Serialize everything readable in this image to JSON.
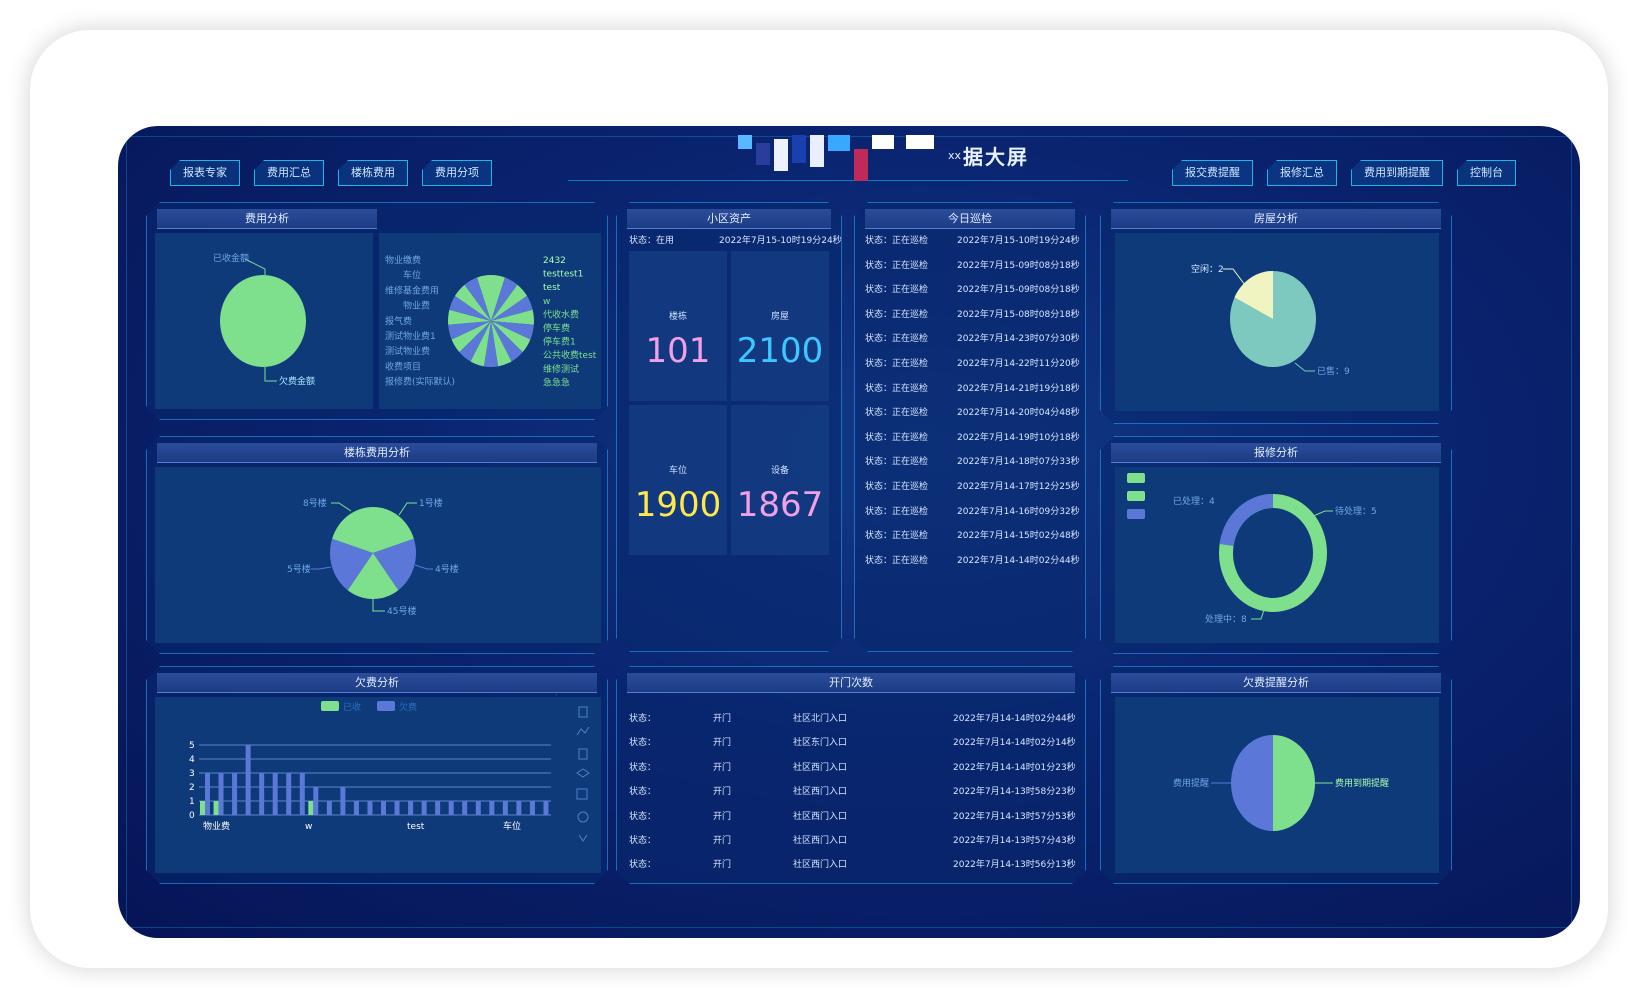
{
  "header": {
    "title": "xx数据大屏",
    "title_suffix": "据大屏",
    "title_prefix": "xx",
    "nav_left": [
      "报表专家",
      "费用汇总",
      "楼栋费用",
      "费用分项"
    ],
    "nav_right": [
      "报交费提醒",
      "报修汇总",
      "费用到期提醒",
      "控制台"
    ]
  },
  "panels": {
    "fee_analysis": {
      "title": "费用分析",
      "left_pie": {
        "labels": [
          "已收金额",
          "欠费金额"
        ]
      },
      "right_pie": {
        "labels_left": [
          "物业缴费",
          "车位",
          "维修基金费用",
          "物业费",
          "报气费",
          "测试物业费1",
          "测试物业费",
          "收费项目",
          "报修费(实际默认)"
        ],
        "labels_right": [
          "2432",
          "testtest1",
          "test",
          "w",
          "代收水费",
          "停车费",
          "停车费1",
          "公共收费test",
          "维修测试",
          "急急急"
        ]
      }
    },
    "building_fee": {
      "title": "楼栋费用分析",
      "labels": [
        "8号楼",
        "1号楼",
        "5号楼",
        "4号楼",
        "45号楼"
      ]
    },
    "arrears": {
      "title": "欠费分析",
      "legend": [
        "已收",
        "欠费"
      ],
      "yticks": [
        "5",
        "4",
        "3",
        "2",
        "1",
        "0"
      ],
      "xticks": [
        "物业费",
        "w",
        "test",
        "车位"
      ]
    },
    "community_assets": {
      "title": "小区资产",
      "status_label": "状态：在用",
      "timestamp": "2022年7月15-10时19分24秒",
      "tiles": [
        {
          "label": "楼栋",
          "value": "101",
          "color": "#f0a0e6"
        },
        {
          "label": "房屋",
          "value": "2100",
          "color": "#3cc8ff"
        },
        {
          "label": "车位",
          "value": "1900",
          "color": "#ffe84a"
        },
        {
          "label": "设备",
          "value": "1867",
          "color": "#f0a0e6"
        }
      ]
    },
    "inspection": {
      "title": "今日巡检",
      "rows": [
        {
          "status": "状态：正在巡检",
          "time": "2022年7月15-10时19分24秒"
        },
        {
          "status": "状态：正在巡检",
          "time": "2022年7月15-09时08分18秒"
        },
        {
          "status": "状态：正在巡检",
          "time": "2022年7月15-09时08分18秒"
        },
        {
          "status": "状态：正在巡检",
          "time": "2022年7月15-08时08分18秒"
        },
        {
          "status": "状态：正在巡检",
          "time": "2022年7月14-23时07分30秒"
        },
        {
          "status": "状态：正在巡检",
          "time": "2022年7月14-22时11分20秒"
        },
        {
          "status": "状态：正在巡检",
          "time": "2022年7月14-21时19分18秒"
        },
        {
          "status": "状态：正在巡检",
          "time": "2022年7月14-20时04分48秒"
        },
        {
          "status": "状态：正在巡检",
          "time": "2022年7月14-19时10分18秒"
        },
        {
          "status": "状态：正在巡检",
          "time": "2022年7月14-18时07分33秒"
        },
        {
          "status": "状态：正在巡检",
          "time": "2022年7月14-17时12分25秒"
        },
        {
          "status": "状态：正在巡检",
          "time": "2022年7月14-16时09分32秒"
        },
        {
          "status": "状态：正在巡检",
          "time": "2022年7月14-15时02分48秒"
        },
        {
          "status": "状态：正在巡检",
          "time": "2022年7月14-14时02分44秒"
        }
      ]
    },
    "door_open": {
      "title": "开门次数",
      "rows": [
        {
          "status": "状态：",
          "action": "开门",
          "place": "社区北门入口",
          "time": "2022年7月14-14时02分44秒"
        },
        {
          "status": "状态：",
          "action": "开门",
          "place": "社区东门入口",
          "time": "2022年7月14-14时02分14秒"
        },
        {
          "status": "状态：",
          "action": "开门",
          "place": "社区西门入口",
          "time": "2022年7月14-14时01分23秒"
        },
        {
          "status": "状态：",
          "action": "开门",
          "place": "社区西门入口",
          "time": "2022年7月14-13时58分23秒"
        },
        {
          "status": "状态：",
          "action": "开门",
          "place": "社区西门入口",
          "time": "2022年7月14-13时57分53秒"
        },
        {
          "status": "状态：",
          "action": "开门",
          "place": "社区西门入口",
          "time": "2022年7月14-13时57分43秒"
        },
        {
          "status": "状态：",
          "action": "开门",
          "place": "社区西门入口",
          "time": "2022年7月14-13时56分13秒"
        }
      ]
    },
    "housing": {
      "title": "房屋分析",
      "labels": [
        "空闲：2",
        "已售：9"
      ]
    },
    "repair": {
      "title": "报修分析",
      "labels": [
        "已处理：4",
        "待处理：5",
        "处理中：8"
      ]
    },
    "arrears_reminder": {
      "title": "欠费提醒分析",
      "labels": [
        "费用提醒",
        "费用到期提醒"
      ]
    }
  },
  "chart_data": [
    {
      "type": "pie",
      "title": "费用分析",
      "categories": [
        "已收金额",
        "欠费金额"
      ],
      "values": [
        0,
        100
      ]
    },
    {
      "type": "pie",
      "title": "楼栋费用分析",
      "categories": [
        "1号楼",
        "4号楼",
        "45号楼",
        "5号楼",
        "8号楼"
      ],
      "values": [
        20,
        20,
        20,
        20,
        20
      ]
    },
    {
      "type": "bar",
      "title": "欠费分析",
      "series": [
        {
          "name": "已收",
          "values": [
            1,
            1,
            0,
            0,
            0,
            0,
            0,
            0,
            1,
            0,
            0,
            0,
            0,
            0,
            0,
            0,
            0,
            0,
            0,
            0,
            0,
            0,
            0,
            0,
            0,
            0
          ]
        },
        {
          "name": "欠费",
          "values": [
            3,
            3,
            3,
            5,
            3,
            3,
            3,
            3,
            2,
            1,
            2,
            1,
            1,
            1,
            1,
            1,
            1,
            1,
            1,
            1,
            1,
            1,
            1,
            1,
            1,
            1
          ]
        }
      ],
      "ylim": [
        0,
        5
      ]
    },
    {
      "type": "pie",
      "title": "房屋分析",
      "categories": [
        "空闲",
        "已售"
      ],
      "values": [
        2,
        9
      ]
    },
    {
      "type": "pie",
      "title": "报修分析",
      "categories": [
        "已处理",
        "待处理",
        "处理中"
      ],
      "values": [
        4,
        5,
        8
      ]
    },
    {
      "type": "pie",
      "title": "欠费提醒分析",
      "categories": [
        "费用提醒",
        "费用到期提醒"
      ],
      "values": [
        50,
        50
      ]
    }
  ],
  "colors": {
    "green": "#7ee08c",
    "blue": "#5b78d8",
    "teal": "#7dc9c0",
    "cream": "#f0f4c0"
  }
}
